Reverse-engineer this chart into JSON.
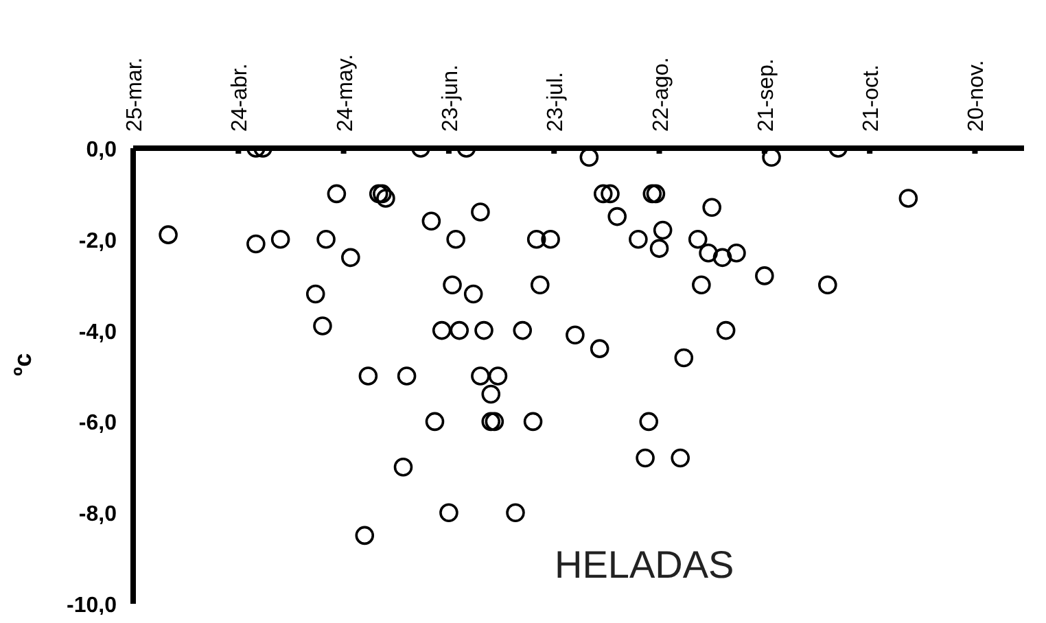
{
  "chart_data": {
    "type": "scatter",
    "ylabel": "ºc",
    "annotations": [
      "HELADAS"
    ],
    "marker": "circle",
    "grid": false,
    "legend": false,
    "xlim": [
      "--03-25",
      "--12-04"
    ],
    "xticks": [
      {
        "value": "--03-25",
        "label": "25-mar."
      },
      {
        "value": "--04-24",
        "label": "24-abr."
      },
      {
        "value": "--05-24",
        "label": "24-may."
      },
      {
        "value": "--06-23",
        "label": "23-jun."
      },
      {
        "value": "--07-23",
        "label": "23-jul."
      },
      {
        "value": "--08-22",
        "label": "22-ago."
      },
      {
        "value": "--09-21",
        "label": "21-sep."
      },
      {
        "value": "--10-21",
        "label": "21-oct."
      },
      {
        "value": "--11-20",
        "label": "20-nov."
      }
    ],
    "ylim": [
      -10,
      0
    ],
    "yticks": [
      {
        "value": 0,
        "label": "0,0"
      },
      {
        "value": -2,
        "label": "-2,0"
      },
      {
        "value": -4,
        "label": "-4,0"
      },
      {
        "value": -6,
        "label": "-6,0"
      },
      {
        "value": -8,
        "label": "-8,0"
      },
      {
        "value": -10,
        "label": "-10,0"
      }
    ],
    "series": [
      {
        "color": "#000000",
        "x": [
          "--04-04",
          "--04-29",
          "--05-01",
          "--04-29",
          "--05-06",
          "--05-16",
          "--05-18",
          "--05-19",
          "--05-22",
          "--05-26",
          "--05-31",
          "--06-03",
          "--06-04",
          "--06-05",
          "--06-11",
          "--06-10",
          "--05-30",
          "--06-15",
          "--06-18",
          "--06-19",
          "--06-21",
          "--06-23",
          "--06-24",
          "--06-25",
          "--06-26",
          "--06-28",
          "--06-30",
          "--07-02",
          "--07-02",
          "--07-03",
          "--07-05",
          "--07-07",
          "--07-05",
          "--07-06",
          "--07-12",
          "--07-14",
          "--07-17",
          "--07-18",
          "--07-22",
          "--07-19",
          "--07-29",
          "--08-02",
          "--08-05",
          "--08-06",
          "--08-08",
          "--08-10",
          "--08-16",
          "--08-18",
          "--08-19",
          "--08-20",
          "--08-21",
          "--08-22",
          "--08-23",
          "--08-28",
          "--08-29",
          "--09-02",
          "--09-03",
          "--09-05",
          "--09-06",
          "--09-09",
          "--09-10",
          "--09-13",
          "--09-21",
          "--09-23",
          "--10-09",
          "--10-12",
          "--11-01"
        ],
        "values": [
          -1.9,
          0,
          0,
          -2.1,
          -2.0,
          -3.2,
          -3.9,
          -2.0,
          -1.0,
          -2.4,
          -5.0,
          -1.0,
          -1.0,
          -1.1,
          -5.0,
          -7.0,
          -8.5,
          0,
          -1.6,
          -6.0,
          -4.0,
          -8.0,
          -3.0,
          -2.0,
          -4.0,
          0,
          -3.2,
          -1.4,
          -5.0,
          -4.0,
          -5.4,
          -5.0,
          -6.0,
          -6.0,
          -8.0,
          -4.0,
          -6.0,
          -2.0,
          -2.0,
          -3.0,
          -4.1,
          -0.2,
          -4.4,
          -1.0,
          -1.0,
          -1.5,
          -2.0,
          -6.8,
          -6.0,
          -1.0,
          -1.0,
          -2.2,
          -1.8,
          -6.8,
          -4.6,
          -2.0,
          -3.0,
          -2.3,
          -1.3,
          -2.4,
          -4.0,
          -2.3,
          -2.8,
          -0.2,
          -3.0,
          0,
          -1.1
        ]
      }
    ]
  }
}
